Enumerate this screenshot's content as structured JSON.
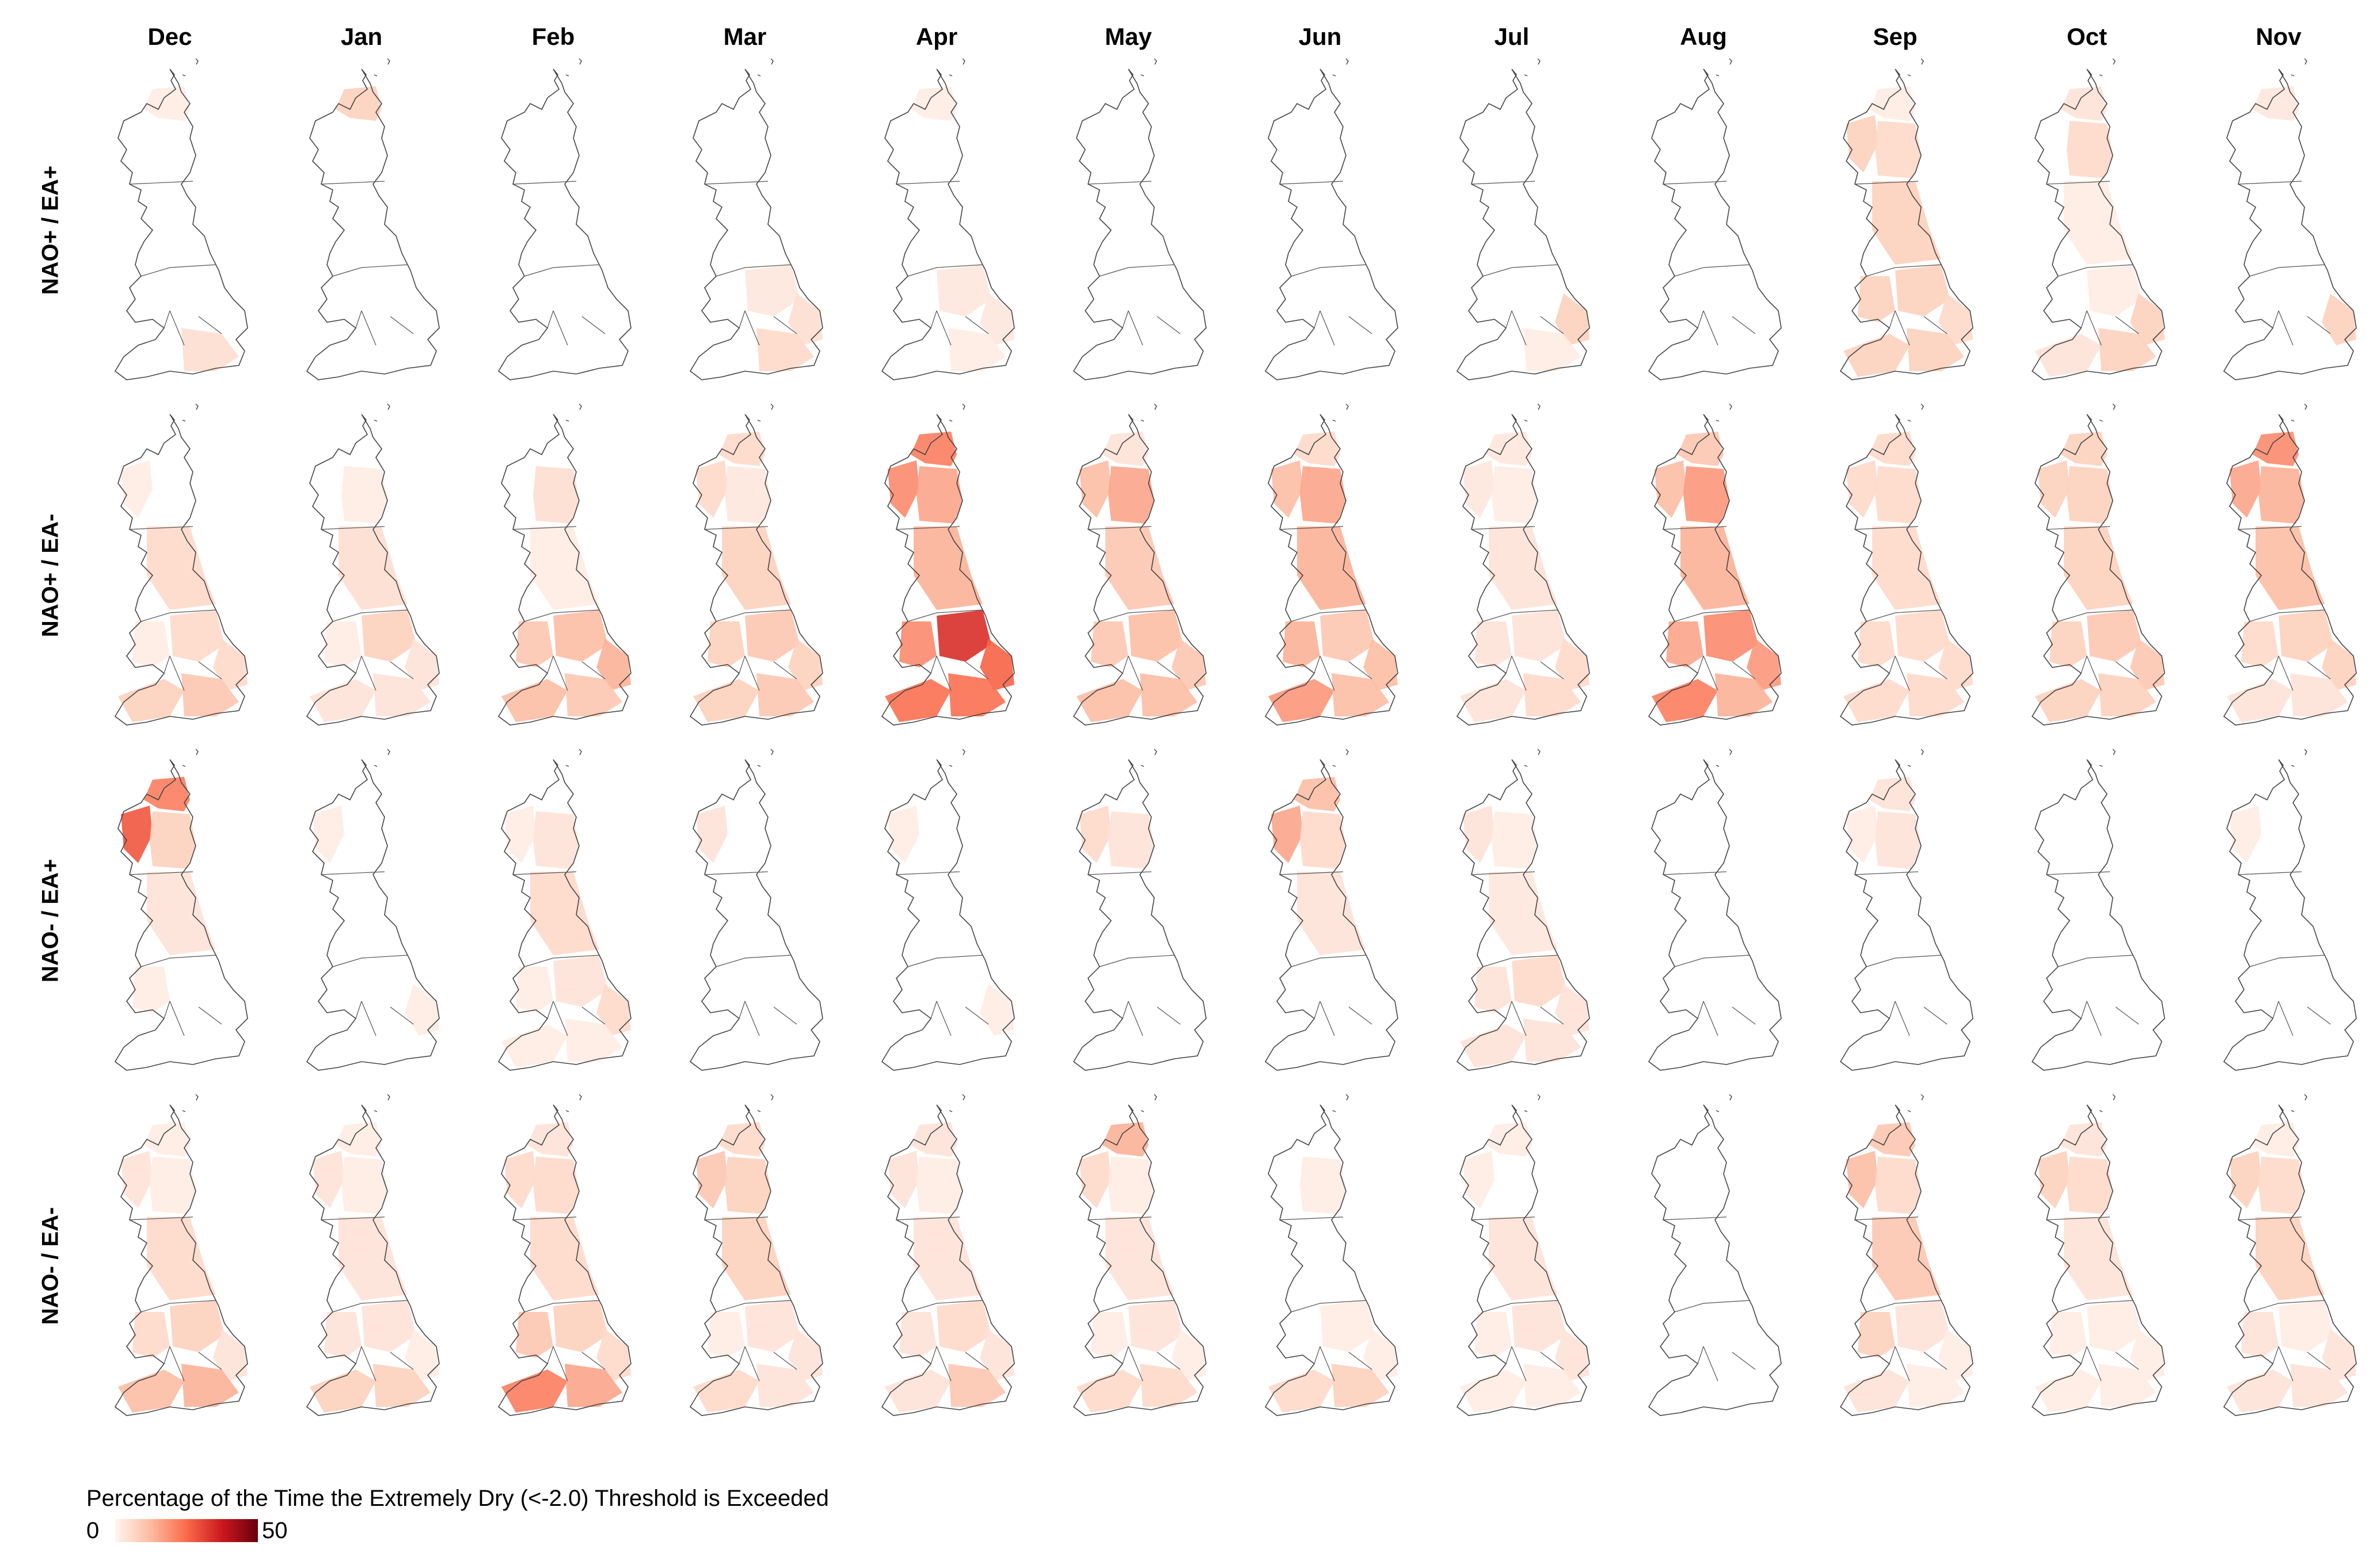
{
  "months": [
    "Dec",
    "Jan",
    "Feb",
    "Mar",
    "Apr",
    "May",
    "Jun",
    "Jul",
    "Aug",
    "Sep",
    "Oct",
    "Nov"
  ],
  "rows": [
    "NAO+ / EA+",
    "NAO+ / EA-",
    "NAO- / EA+",
    "NAO- / EA-"
  ],
  "legend": {
    "title": "Percentage of the Time the Extremely Dry (<-2.0) Threshold is Exceeded",
    "min_label": "0",
    "max_label": "50",
    "colors": [
      "#fff5f0",
      "#fcbba1",
      "#fb6a4a",
      "#cb181d",
      "#67000d"
    ]
  },
  "map_data": {
    "scale": "Reds",
    "value_units": "percent of time",
    "regions": [
      "north-scotland",
      "west-scotland",
      "east-scotland",
      "north-england",
      "wales",
      "midlands",
      "east-anglia",
      "southwest-england",
      "southeast-england"
    ],
    "grid": [
      [
        [
          2,
          0,
          0,
          0,
          0,
          0,
          0,
          0,
          5
        ],
        [
          8,
          0,
          0,
          0,
          0,
          0,
          0,
          0,
          0
        ],
        [
          0,
          0,
          0,
          0,
          0,
          0,
          0,
          0,
          0
        ],
        [
          0,
          0,
          0,
          0,
          0,
          3,
          5,
          0,
          6
        ],
        [
          2,
          0,
          0,
          0,
          0,
          3,
          3,
          0,
          2
        ],
        [
          0,
          0,
          0,
          0,
          0,
          0,
          0,
          0,
          0
        ],
        [
          0,
          0,
          0,
          0,
          0,
          0,
          0,
          0,
          0
        ],
        [
          0,
          0,
          0,
          0,
          0,
          0,
          8,
          0,
          2
        ],
        [
          0,
          0,
          0,
          0,
          0,
          0,
          0,
          0,
          0
        ],
        [
          2,
          8,
          6,
          8,
          8,
          8,
          6,
          8,
          8
        ],
        [
          4,
          0,
          6,
          2,
          0,
          2,
          8,
          4,
          8
        ],
        [
          3,
          0,
          0,
          0,
          0,
          0,
          8,
          0,
          0
        ]
      ],
      [
        [
          0,
          2,
          0,
          6,
          2,
          6,
          6,
          8,
          10
        ],
        [
          0,
          0,
          2,
          5,
          2,
          8,
          4,
          4,
          4
        ],
        [
          0,
          0,
          5,
          2,
          10,
          12,
          14,
          12,
          10
        ],
        [
          6,
          6,
          3,
          8,
          8,
          10,
          8,
          8,
          10
        ],
        [
          22,
          20,
          16,
          14,
          20,
          34,
          26,
          24,
          24
        ],
        [
          4,
          12,
          16,
          10,
          10,
          12,
          10,
          12,
          12
        ],
        [
          6,
          12,
          16,
          14,
          14,
          10,
          12,
          18,
          12
        ],
        [
          3,
          3,
          2,
          4,
          4,
          4,
          6,
          4,
          6
        ],
        [
          10,
          12,
          18,
          14,
          16,
          20,
          18,
          22,
          14
        ],
        [
          6,
          6,
          6,
          6,
          6,
          6,
          6,
          6,
          6
        ],
        [
          8,
          8,
          8,
          8,
          8,
          10,
          10,
          8,
          8
        ],
        [
          20,
          16,
          14,
          12,
          6,
          8,
          8,
          4,
          4
        ]
      ],
      [
        [
          22,
          28,
          8,
          4,
          2,
          0,
          0,
          0,
          0
        ],
        [
          0,
          2,
          0,
          0,
          0,
          0,
          2,
          0,
          0
        ],
        [
          0,
          2,
          4,
          6,
          2,
          4,
          6,
          2,
          2
        ],
        [
          0,
          4,
          0,
          0,
          0,
          0,
          0,
          0,
          0
        ],
        [
          0,
          2,
          0,
          0,
          0,
          0,
          2,
          0,
          0
        ],
        [
          0,
          6,
          4,
          0,
          0,
          0,
          0,
          0,
          0
        ],
        [
          12,
          16,
          6,
          4,
          0,
          0,
          0,
          0,
          0
        ],
        [
          0,
          4,
          2,
          3,
          4,
          6,
          4,
          4,
          4
        ],
        [
          0,
          0,
          0,
          0,
          0,
          0,
          0,
          0,
          0
        ],
        [
          4,
          2,
          4,
          0,
          0,
          0,
          0,
          0,
          0
        ],
        [
          0,
          0,
          0,
          0,
          0,
          0,
          0,
          0,
          0
        ],
        [
          0,
          2,
          0,
          0,
          0,
          0,
          0,
          0,
          0
        ]
      ],
      [
        [
          2,
          4,
          2,
          6,
          6,
          8,
          4,
          12,
          14
        ],
        [
          2,
          4,
          2,
          4,
          4,
          4,
          2,
          8,
          8
        ],
        [
          4,
          6,
          6,
          6,
          10,
          8,
          6,
          22,
          16
        ],
        [
          6,
          10,
          8,
          8,
          2,
          4,
          4,
          6,
          4
        ],
        [
          4,
          4,
          2,
          4,
          4,
          6,
          4,
          4,
          10
        ],
        [
          14,
          6,
          2,
          4,
          2,
          4,
          2,
          6,
          6
        ],
        [
          0,
          0,
          2,
          0,
          0,
          2,
          2,
          6,
          8
        ],
        [
          2,
          2,
          0,
          4,
          2,
          4,
          4,
          2,
          2
        ],
        [
          0,
          0,
          0,
          0,
          0,
          0,
          0,
          0,
          0
        ],
        [
          10,
          12,
          6,
          10,
          8,
          4,
          2,
          4,
          2
        ],
        [
          4,
          8,
          6,
          4,
          2,
          2,
          2,
          2,
          2
        ],
        [
          2,
          8,
          6,
          8,
          4,
          2,
          4,
          4,
          4
        ]
      ]
    ]
  }
}
